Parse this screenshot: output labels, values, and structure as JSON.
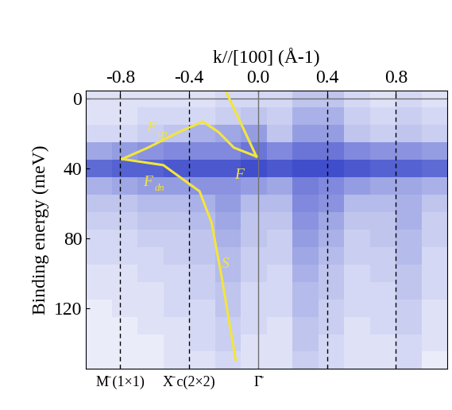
{
  "chart_data": {
    "type": "heatmap",
    "x_label": "k//[100] (Å-1)",
    "y_label": "Binding energy (meV)",
    "xlim": [
      -1.0,
      1.1
    ],
    "ylim": [
      155,
      -5
    ],
    "xticks": [
      {
        "value": -0.8,
        "label": "-0.8"
      },
      {
        "value": -0.4,
        "label": "-0.4"
      },
      {
        "value": 0.0,
        "label": "0.0"
      },
      {
        "value": 0.4,
        "label": "0.4"
      },
      {
        "value": 0.8,
        "label": "0.8"
      }
    ],
    "yticks": [
      0,
      40,
      80,
      120
    ],
    "cell_x": [
      -1.0,
      -0.85,
      -0.7,
      -0.55,
      -0.4,
      -0.25,
      -0.1,
      0.05,
      0.2,
      0.35,
      0.5,
      0.65,
      0.8,
      0.95,
      1.1
    ],
    "cell_y": [
      -5,
      5,
      15,
      25,
      35,
      45,
      55,
      65,
      75,
      85,
      95,
      105,
      115,
      125,
      135,
      145,
      155
    ],
    "cell_range": [
      0,
      1
    ],
    "cells": [
      [
        0.15,
        0.15,
        0.15,
        0.15,
        0.15,
        0.2,
        0.2,
        0.2,
        0.3,
        0.3,
        0.2,
        0.15,
        0.2,
        0.15
      ],
      [
        0.15,
        0.15,
        0.2,
        0.2,
        0.2,
        0.25,
        0.3,
        0.25,
        0.4,
        0.4,
        0.25,
        0.2,
        0.25,
        0.2
      ],
      [
        0.2,
        0.2,
        0.25,
        0.3,
        0.4,
        0.45,
        0.5,
        0.3,
        0.5,
        0.5,
        0.3,
        0.25,
        0.3,
        0.25
      ],
      [
        0.45,
        0.5,
        0.55,
        0.6,
        0.6,
        0.6,
        0.7,
        0.6,
        0.7,
        0.7,
        0.6,
        0.55,
        0.55,
        0.5
      ],
      [
        0.75,
        0.8,
        0.8,
        0.85,
        0.85,
        0.85,
        0.9,
        0.85,
        0.9,
        0.9,
        0.85,
        0.8,
        0.8,
        0.75
      ],
      [
        0.4,
        0.45,
        0.5,
        0.5,
        0.55,
        0.55,
        0.5,
        0.45,
        0.65,
        0.6,
        0.5,
        0.45,
        0.45,
        0.4
      ],
      [
        0.3,
        0.3,
        0.35,
        0.35,
        0.4,
        0.5,
        0.35,
        0.35,
        0.6,
        0.55,
        0.35,
        0.35,
        0.4,
        0.3
      ],
      [
        0.25,
        0.25,
        0.3,
        0.3,
        0.35,
        0.45,
        0.3,
        0.3,
        0.55,
        0.45,
        0.3,
        0.3,
        0.4,
        0.25
      ],
      [
        0.2,
        0.2,
        0.25,
        0.25,
        0.3,
        0.4,
        0.3,
        0.25,
        0.5,
        0.4,
        0.25,
        0.3,
        0.35,
        0.25
      ],
      [
        0.2,
        0.2,
        0.2,
        0.25,
        0.3,
        0.35,
        0.25,
        0.25,
        0.45,
        0.35,
        0.25,
        0.25,
        0.35,
        0.2
      ],
      [
        0.15,
        0.15,
        0.2,
        0.2,
        0.25,
        0.35,
        0.25,
        0.2,
        0.4,
        0.3,
        0.2,
        0.25,
        0.3,
        0.2
      ],
      [
        0.15,
        0.15,
        0.15,
        0.2,
        0.25,
        0.3,
        0.2,
        0.2,
        0.35,
        0.3,
        0.2,
        0.2,
        0.3,
        0.2
      ],
      [
        0.1,
        0.15,
        0.15,
        0.2,
        0.2,
        0.3,
        0.2,
        0.2,
        0.35,
        0.25,
        0.2,
        0.2,
        0.25,
        0.15
      ],
      [
        0.1,
        0.1,
        0.15,
        0.15,
        0.2,
        0.25,
        0.2,
        0.15,
        0.3,
        0.25,
        0.15,
        0.2,
        0.25,
        0.15
      ],
      [
        0.1,
        0.1,
        0.1,
        0.15,
        0.2,
        0.25,
        0.15,
        0.15,
        0.3,
        0.2,
        0.15,
        0.15,
        0.2,
        0.15
      ],
      [
        0.1,
        0.1,
        0.1,
        0.15,
        0.15,
        0.2,
        0.15,
        0.15,
        0.25,
        0.2,
        0.15,
        0.15,
        0.2,
        0.1
      ]
    ],
    "dashed_x": [
      -0.8,
      -0.4,
      0.4,
      0.8
    ],
    "solid_x": [
      0.0
    ],
    "solid_y": [
      0
    ],
    "curves": [
      {
        "x": [
          -0.79,
          -0.64,
          -0.46,
          -0.32,
          -0.23,
          -0.14,
          -0.01
        ],
        "y": [
          34.5,
          28,
          19,
          13,
          19,
          28,
          33
        ]
      },
      {
        "x": [
          -0.01,
          -0.09,
          -0.19
        ],
        "y": [
          33,
          16,
          -5
        ]
      },
      {
        "x": [
          -0.79,
          -0.55,
          -0.34,
          -0.27,
          -0.21,
          -0.13
        ],
        "y": [
          34.5,
          38,
          53,
          71,
          103,
          150
        ]
      }
    ],
    "curve_color": "#f2e63c",
    "curve_labels": [
      {
        "text": "F",
        "sub": "up",
        "x": -0.62,
        "y": 17
      },
      {
        "text": "F",
        "sub": "dn",
        "x": -0.64,
        "y": 48
      },
      {
        "text": "F",
        "sub": "",
        "x": -0.11,
        "y": 44
      },
      {
        "text": "S",
        "sub": "",
        "x": -0.19,
        "y": 95
      }
    ],
    "points": [
      {
        "x": -0.8,
        "label": "M̄ (1×1)"
      },
      {
        "x": -0.4,
        "label": "X̄ c(2×2)"
      },
      {
        "x": 0.0,
        "label": "Γ̄"
      }
    ]
  }
}
